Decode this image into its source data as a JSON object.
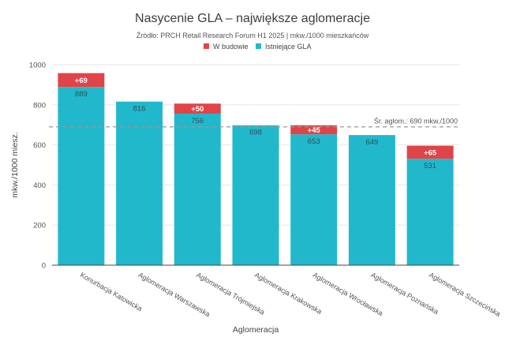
{
  "chart_data": {
    "type": "bar",
    "stacked": true,
    "title": "Nasycenie GLA – największe aglomeracje",
    "subtitle": "Źródło: PRCH Retail Research Forum H1 2025 | mkw./1000 mieszkańców",
    "xlabel": "Aglomeracja",
    "ylabel": "mkw./1000 miesz.",
    "ylim": [
      0,
      1000
    ],
    "yticks": [
      0,
      200,
      400,
      600,
      800,
      1000
    ],
    "grid": true,
    "legend_position": "top-center",
    "categories": [
      "Konurbacja Katowicka",
      "Aglomeracja Warszawska",
      "Aglomeracja Trójmiejska",
      "Aglomeracja Krakowska",
      "Aglomeracja Wrocławska",
      "Aglomeracja Poznańska",
      "Aglomeracja Szczecińska"
    ],
    "series": [
      {
        "name": "Istniejące GLA",
        "color": "#21b8cc",
        "values": [
          889,
          816,
          756,
          698,
          653,
          649,
          531
        ],
        "labels": [
          "889",
          "816",
          "756",
          "698",
          "653",
          "649",
          "531"
        ]
      },
      {
        "name": "W budowie",
        "color": "#e04448",
        "values": [
          69,
          0,
          50,
          0,
          45,
          0,
          65
        ],
        "labels": [
          "+69",
          "",
          "+50",
          "",
          "+45",
          "",
          "+65"
        ]
      }
    ],
    "reference_line": {
      "value": 690,
      "label": "Śr. aglom.: 690 mkw./1000",
      "color": "#999999"
    }
  }
}
